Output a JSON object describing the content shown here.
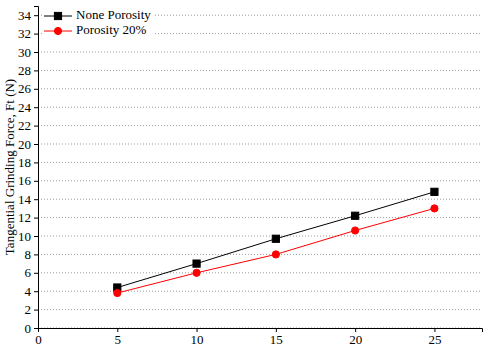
{
  "chart_data": {
    "type": "line",
    "y_label": "Tangential Grinding Force, Ft (N)",
    "x": [
      5,
      10,
      15,
      20,
      25
    ],
    "series": [
      {
        "name": "None Porosity",
        "color": "#000000",
        "marker": "square",
        "line_style": "solid",
        "values": [
          4.4,
          7.0,
          9.7,
          12.2,
          14.8
        ]
      },
      {
        "name": "Porosity 20%",
        "color": "#ff0000",
        "marker": "circle",
        "line_style": "solid",
        "values": [
          3.8,
          6.0,
          8.0,
          10.6,
          13.0
        ]
      }
    ],
    "xlim": [
      0,
      28
    ],
    "xticks": [
      0,
      5,
      10,
      15,
      20,
      25
    ],
    "ylim": [
      0,
      35
    ],
    "yticks": [
      0,
      2,
      4,
      6,
      8,
      10,
      12,
      14,
      16,
      18,
      20,
      22,
      24,
      26,
      28,
      30,
      32,
      34
    ],
    "grid": true,
    "legend": "upper left"
  }
}
